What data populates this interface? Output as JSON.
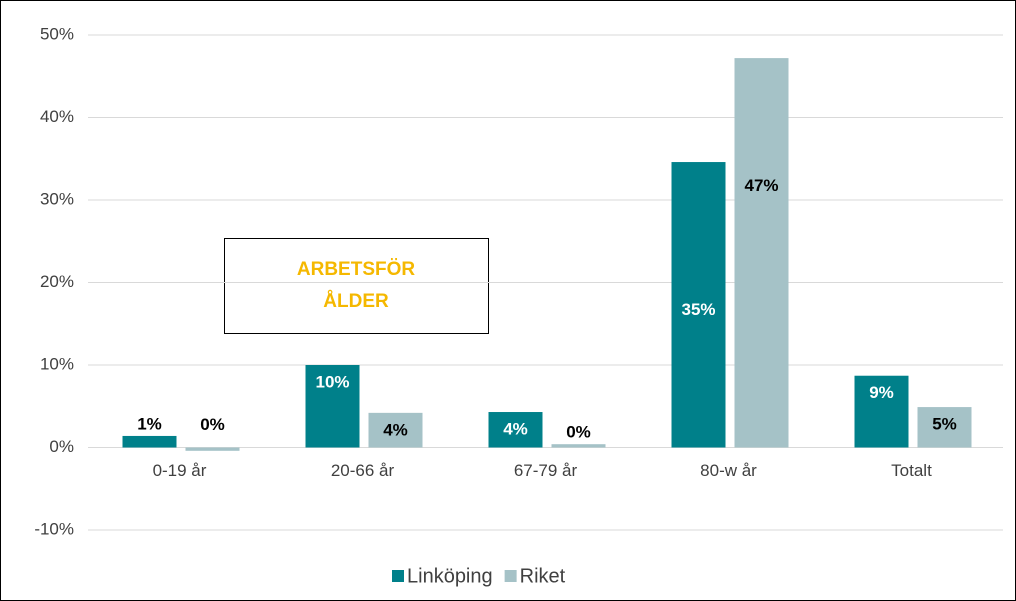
{
  "chart_data": {
    "type": "bar",
    "categories": [
      "0-19 år",
      "20-66 år",
      "67-79 år",
      "80-w år",
      "Totalt"
    ],
    "series": [
      {
        "name": "Linköping",
        "color": "#00808a",
        "values": [
          1.4,
          10,
          4.3,
          34.6,
          8.7
        ],
        "value_labels": [
          "1%",
          "10%",
          "4%",
          "35%",
          "9%"
        ]
      },
      {
        "name": "Riket",
        "color": "#a5c2c7",
        "values": [
          -0.4,
          4.2,
          0.4,
          47.2,
          4.9
        ],
        "value_labels": [
          "0%",
          "4%",
          "0%",
          "47%",
          "5%"
        ]
      }
    ],
    "ylim": [
      -10,
      50
    ],
    "yticks": [
      {
        "value": -10,
        "label": "-10%"
      },
      {
        "value": 0,
        "label": "0%"
      },
      {
        "value": 10,
        "label": "10%"
      },
      {
        "value": 20,
        "label": "20%"
      },
      {
        "value": 30,
        "label": "30%"
      },
      {
        "value": 40,
        "label": "40%"
      },
      {
        "value": 50,
        "label": "50%"
      }
    ],
    "grid": true,
    "legend": "bottom",
    "annotation": [
      "ARBETSFÖR",
      "ÅLDER"
    ]
  }
}
